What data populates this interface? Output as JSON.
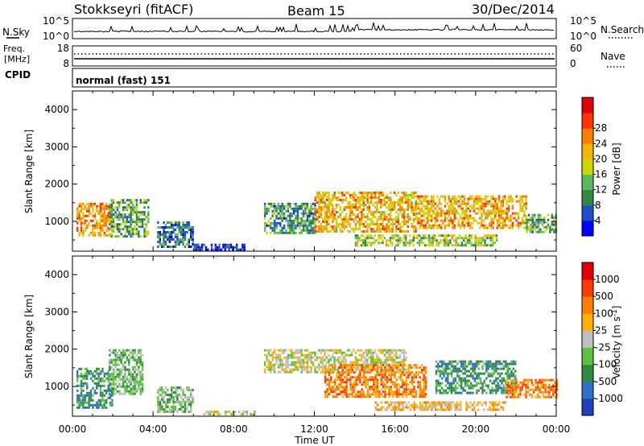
{
  "header": {
    "station": "Stokkseyri (fitACF)",
    "beam": "Beam 15",
    "date": "30/Dec/2014"
  },
  "noise_panel": {
    "left_label": "N.Sky",
    "right_label": "N.Search",
    "left_ticks": [
      "10^5",
      "10^0"
    ],
    "right_ticks": [
      "10^5",
      "10^0"
    ]
  },
  "freq_panel": {
    "left_label_line1": "Freq.",
    "left_label_line2": "[MHz]",
    "right_label": "Nave",
    "left_ticks": [
      "18",
      "8"
    ],
    "right_ticks": [
      "60",
      "0"
    ]
  },
  "cpid": {
    "label": "CPID",
    "value": "normal (fast) 151"
  },
  "x_axis": {
    "label": "Time UT",
    "ticks": [
      "00:00",
      "04:00",
      "08:00",
      "12:00",
      "16:00",
      "20:00",
      "00:00"
    ]
  },
  "chart_data": [
    {
      "type": "heatmap",
      "quantity": "power",
      "ylabel": "Slant Range [km]",
      "yticks": [
        "1000",
        "2000",
        "3000",
        "4000"
      ],
      "ylim": [
        200,
        4500
      ],
      "xlim_hours": [
        0,
        24
      ],
      "colorbar": {
        "label": "Power [dB]",
        "ticks": [
          "4",
          "8",
          "12",
          "16",
          "20",
          "24",
          "28"
        ],
        "levels": [
          0,
          4,
          8,
          12,
          16,
          20,
          24,
          28,
          32
        ],
        "colors": [
          "#0000ff",
          "#1f4fc8",
          "#2e8a3e",
          "#5cb85c",
          "#ccd600",
          "#f2b705",
          "#ff7f00",
          "#ff3300",
          "#e00000"
        ]
      },
      "echo_regions": [
        {
          "t0": 0.2,
          "t1": 2.0,
          "r0": 600,
          "r1": 1500,
          "level": 26
        },
        {
          "t0": 1.8,
          "t1": 3.8,
          "r0": 600,
          "r1": 1600,
          "level": 14
        },
        {
          "t0": 4.2,
          "t1": 6.0,
          "r0": 350,
          "r1": 1000,
          "level": 10
        },
        {
          "t0": 6.0,
          "t1": 8.5,
          "r0": 250,
          "r1": 400,
          "level": 6
        },
        {
          "t0": 9.5,
          "t1": 12.0,
          "r0": 700,
          "r1": 1500,
          "level": 12
        },
        {
          "t0": 12.0,
          "t1": 17.0,
          "r0": 700,
          "r1": 1800,
          "level": 24
        },
        {
          "t0": 14.0,
          "t1": 21.0,
          "r0": 350,
          "r1": 650,
          "level": 18
        },
        {
          "t0": 17.0,
          "t1": 22.5,
          "r0": 800,
          "r1": 1700,
          "level": 24
        },
        {
          "t0": 22.5,
          "t1": 24.0,
          "r0": 700,
          "r1": 1200,
          "level": 14
        }
      ]
    },
    {
      "type": "heatmap",
      "quantity": "velocity",
      "ylabel": "Slant Range [km]",
      "yticks": [
        "1000",
        "2000",
        "3000",
        "4000"
      ],
      "ylim": [
        200,
        4500
      ],
      "xlim_hours": [
        0,
        24
      ],
      "colorbar": {
        "label": "Velocity [m s",
        "label_sup": "-1",
        "label_end": "]",
        "ticks": [
          "1000",
          "500",
          "100",
          "25",
          "-25",
          "-100",
          "-500",
          "-1000"
        ],
        "colors": [
          "#1f3fbf",
          "#2f6fcf",
          "#2e8a3e",
          "#5cc040",
          "#bfbfbf",
          "#ffb000",
          "#ff7f00",
          "#ff3a00",
          "#e00000"
        ]
      },
      "echo_regions": [
        {
          "t0": 0.2,
          "t1": 2.0,
          "r0": 400,
          "r1": 1500,
          "level": 2
        },
        {
          "t0": 1.8,
          "t1": 3.5,
          "r0": 800,
          "r1": 2000,
          "level": 3
        },
        {
          "t0": 4.2,
          "t1": 6.0,
          "r0": 350,
          "r1": 1000,
          "level": 3
        },
        {
          "t0": 6.5,
          "t1": 9.0,
          "r0": 250,
          "r1": 350,
          "level": 4
        },
        {
          "t0": 9.5,
          "t1": 16.5,
          "r0": 1400,
          "r1": 2000,
          "level": 4
        },
        {
          "t0": 12.5,
          "t1": 17.5,
          "r0": 700,
          "r1": 1600,
          "level": 6
        },
        {
          "t0": 15.0,
          "t1": 21.5,
          "r0": 400,
          "r1": 600,
          "level": 5
        },
        {
          "t0": 18.0,
          "t1": 22.0,
          "r0": 800,
          "r1": 1700,
          "level": 2
        },
        {
          "t0": 21.5,
          "t1": 24.0,
          "r0": 700,
          "r1": 1200,
          "level": 6
        }
      ]
    }
  ]
}
